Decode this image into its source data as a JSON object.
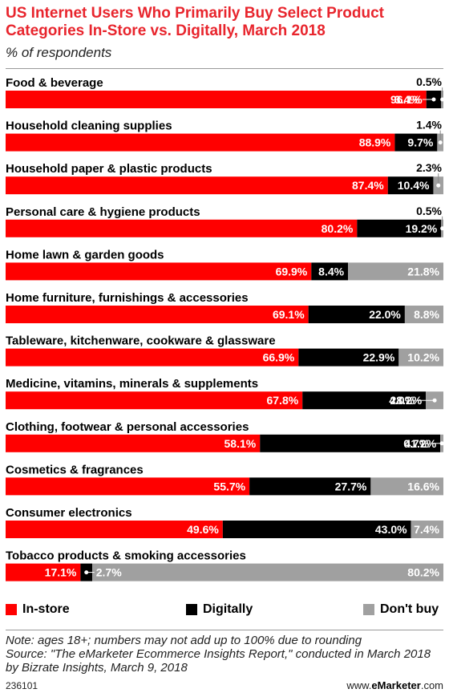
{
  "header": {
    "title": "US Internet Users Who Primarily Buy Select Product Categories In-Store vs. Digitally, March 2018",
    "subtitle": "% of respondents"
  },
  "legend": {
    "in_store": "In-store",
    "digitally": "Digitally",
    "dont_buy": "Don't buy"
  },
  "colors": {
    "in_store": "#ff0000",
    "digitally": "#000000",
    "dont_buy": "#a0a0a0"
  },
  "notes": {
    "line1": "Note: ages 18+; numbers may not add up to 100% due to rounding",
    "line2": "Source: \"The eMarketer Ecommerce Insights Report,\" conducted in March 2018 by Bizrate Insights, March 9, 2018"
  },
  "footer": {
    "chart_id": "236101",
    "site_prefix": "www.",
    "site_brand": "eMarketer",
    "site_suffix": ".com"
  },
  "chart_data": {
    "type": "bar",
    "orientation": "horizontal",
    "stacked": true,
    "unit": "%",
    "categories": [
      "Food & beverage",
      "Household cleaning supplies",
      "Household paper & plastic products",
      "Personal care & hygiene products",
      "Home lawn & garden goods",
      "Home furniture, furnishings & accessories",
      "Tableware, kitchenware, cookware & glassware",
      "Medicine, vitamins, minerals & supplements",
      "Clothing, footwear & personal accessories",
      "Cosmetics & fragrances",
      "Consumer electronics",
      "Tobacco products & smoking accessories"
    ],
    "series": [
      {
        "name": "In-store",
        "values": [
          96.1,
          88.9,
          87.4,
          80.2,
          69.9,
          69.1,
          66.9,
          67.8,
          58.1,
          55.7,
          49.6,
          17.1
        ]
      },
      {
        "name": "Digitally",
        "values": [
          3.4,
          9.7,
          10.4,
          19.2,
          8.4,
          22.0,
          22.9,
          28.2,
          41.2,
          27.7,
          43.0,
          2.7
        ]
      },
      {
        "name": "Don't buy",
        "values": [
          0.5,
          1.4,
          2.3,
          0.5,
          21.8,
          8.8,
          10.2,
          4.0,
          0.7,
          16.6,
          7.4,
          80.2
        ]
      }
    ],
    "data_labels": [
      [
        "96.1%",
        "3.4%",
        "0.5%"
      ],
      [
        "88.9%",
        "9.7%",
        "1.4%"
      ],
      [
        "87.4%",
        "10.4%",
        "2.3%"
      ],
      [
        "80.2%",
        "19.2%",
        "0.5%"
      ],
      [
        "69.9%",
        "8.4%",
        "21.8%"
      ],
      [
        "69.1%",
        "22.0%",
        "8.8%"
      ],
      [
        "66.9%",
        "22.9%",
        "10.2%"
      ],
      [
        "67.8%",
        "28.2%",
        "4.0%"
      ],
      [
        "58.1%",
        "41.2%",
        "0.7%"
      ],
      [
        "55.7%",
        "27.7%",
        "16.6%"
      ],
      [
        "49.6%",
        "43.0%",
        "7.4%"
      ],
      [
        "17.1%",
        "2.7%",
        "80.2%"
      ]
    ]
  }
}
